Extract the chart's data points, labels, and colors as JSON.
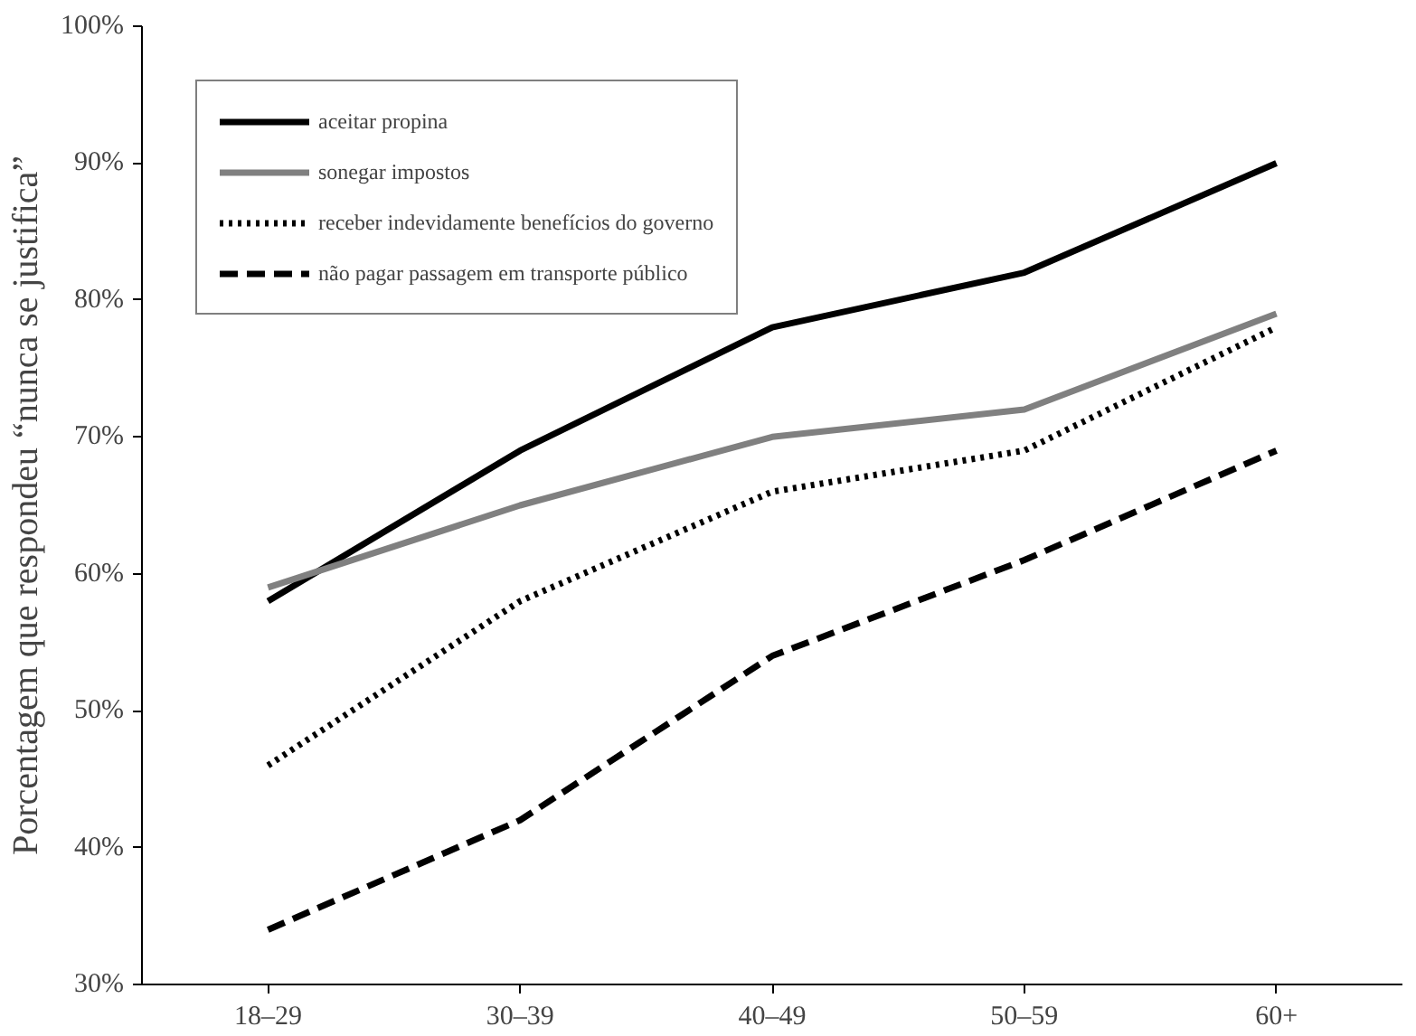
{
  "chart_data": {
    "type": "line",
    "ylabel": "Porcentagem que respondeu “nunca se justifica”",
    "categories": [
      "18–29",
      "30–39",
      "40–49",
      "50–59",
      "60+"
    ],
    "ylim": [
      30,
      100
    ],
    "yticks": [
      {
        "value": 30,
        "label": "30%"
      },
      {
        "value": 40,
        "label": "40%"
      },
      {
        "value": 50,
        "label": "50%"
      },
      {
        "value": 60,
        "label": "60%"
      },
      {
        "value": 70,
        "label": "70%"
      },
      {
        "value": 80,
        "label": "80%"
      },
      {
        "value": 90,
        "label": "90%"
      },
      {
        "value": 100,
        "label": "100%"
      }
    ],
    "grid": false,
    "legend": "top left",
    "marker": "none",
    "series": [
      {
        "name": "aceitar propina",
        "color": "#000000",
        "line_style": "solid",
        "values": [
          58,
          69,
          78,
          82,
          90
        ]
      },
      {
        "name": "sonegar impostos",
        "color": "#808080",
        "line_style": "solid",
        "values": [
          59,
          65,
          70,
          72,
          79
        ]
      },
      {
        "name": "receber indevidamente benefícios do governo",
        "color": "#000000",
        "line_style": "dotted",
        "values": [
          46,
          58,
          66,
          69,
          78
        ]
      },
      {
        "name": "não pagar passagem em transporte público",
        "color": "#000000",
        "line_style": "dashed",
        "values": [
          34,
          42,
          54,
          61,
          69
        ]
      }
    ]
  }
}
